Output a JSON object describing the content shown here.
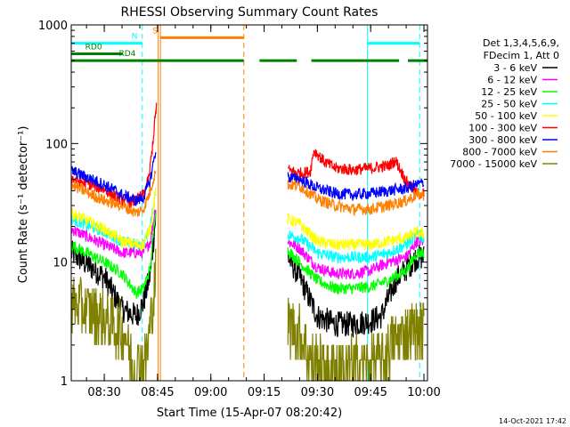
{
  "chart_data": {
    "type": "line",
    "title": "RHESSI Observing Summary Count Rates",
    "xlabel": "Start Time (15-Apr-07 08:20:42)",
    "ylabel": "Count Rate (s⁻¹ detector⁻¹)",
    "yscale": "log",
    "ylim": [
      1,
      1000
    ],
    "xlim_minutes": [
      20.7,
      121
    ],
    "x_ticks": [
      {
        "label": "08:30",
        "min": 30
      },
      {
        "label": "08:45",
        "min": 45
      },
      {
        "label": "09:00",
        "min": 60
      },
      {
        "label": "09:15",
        "min": 75
      },
      {
        "label": "09:30",
        "min": 90
      },
      {
        "label": "09:45",
        "min": 105
      },
      {
        "label": "10:00",
        "min": 120
      }
    ],
    "y_ticks": [
      {
        "label": "1",
        "v": 1
      },
      {
        "label": "10",
        "v": 10
      },
      {
        "label": "100",
        "v": 100
      },
      {
        "label": "1000",
        "v": 1000
      }
    ],
    "legend_header": [
      "Det 1,3,4,5,6,9,",
      "FDecim 1, Att 0"
    ],
    "series": [
      {
        "name": "3 - 6 keV",
        "color": "#000000",
        "a": [
          [
            20.7,
            12
          ],
          [
            30,
            7.5
          ],
          [
            35,
            4
          ],
          [
            39,
            3.5
          ],
          [
            41,
            4.5
          ],
          [
            43,
            8
          ],
          [
            44.5,
            25
          ]
        ],
        "b": [
          [
            81.7,
            11
          ],
          [
            85,
            7.5
          ],
          [
            90,
            3.5
          ],
          [
            95,
            3
          ],
          [
            100,
            3
          ],
          [
            105,
            3.2
          ],
          [
            108,
            3.5
          ],
          [
            112,
            7
          ],
          [
            118,
            11
          ],
          [
            120,
            11
          ]
        ]
      },
      {
        "name": "6 - 12 keV",
        "color": "#ff00ff",
        "a": [
          [
            20.7,
            19
          ],
          [
            30,
            14
          ],
          [
            35,
            12
          ],
          [
            38,
            12
          ],
          [
            41,
            12
          ],
          [
            43,
            15
          ],
          [
            44.5,
            30
          ]
        ],
        "b": [
          [
            81.7,
            15
          ],
          [
            85,
            13
          ],
          [
            90,
            9
          ],
          [
            95,
            8
          ],
          [
            100,
            8
          ],
          [
            105,
            8.5
          ],
          [
            110,
            10
          ],
          [
            115,
            11
          ],
          [
            118,
            15
          ],
          [
            120,
            15
          ]
        ]
      },
      {
        "name": "12 - 25 keV",
        "color": "#00ff00",
        "a": [
          [
            20.7,
            14
          ],
          [
            30,
            10
          ],
          [
            35,
            8
          ],
          [
            39,
            5.5
          ],
          [
            41,
            6
          ],
          [
            43,
            9
          ],
          [
            44.5,
            30
          ]
        ],
        "b": [
          [
            81.7,
            12.5
          ],
          [
            85,
            10
          ],
          [
            90,
            7
          ],
          [
            95,
            6
          ],
          [
            100,
            6
          ],
          [
            105,
            6.2
          ],
          [
            110,
            7
          ],
          [
            115,
            8.5
          ],
          [
            118,
            12
          ],
          [
            120,
            12
          ]
        ]
      },
      {
        "name": "25 - 50 keV",
        "color": "#00ffff",
        "a": [
          [
            20.7,
            23
          ],
          [
            30,
            18
          ],
          [
            35,
            15
          ],
          [
            39,
            14
          ],
          [
            41,
            14
          ],
          [
            43,
            20
          ],
          [
            44.5,
            40
          ]
        ],
        "b": [
          [
            81.7,
            17
          ],
          [
            85,
            16
          ],
          [
            90,
            12
          ],
          [
            95,
            11
          ],
          [
            100,
            11
          ],
          [
            105,
            11
          ],
          [
            110,
            12
          ],
          [
            115,
            14
          ],
          [
            118,
            17
          ],
          [
            120,
            16
          ]
        ]
      },
      {
        "name": "50 - 100 keV",
        "color": "#ffff00",
        "a": [
          [
            20.7,
            26
          ],
          [
            30,
            19
          ],
          [
            35,
            15
          ],
          [
            39,
            14
          ],
          [
            41,
            14
          ],
          [
            43,
            20
          ],
          [
            44.5,
            40
          ]
        ],
        "b": [
          [
            81.7,
            23
          ],
          [
            85,
            21
          ],
          [
            90,
            15
          ],
          [
            95,
            14
          ],
          [
            100,
            14
          ],
          [
            105,
            14
          ],
          [
            110,
            15
          ],
          [
            115,
            16
          ],
          [
            118,
            18
          ],
          [
            120,
            17
          ]
        ]
      },
      {
        "name": "100 - 300 keV",
        "color": "#ff0000",
        "a": [
          [
            20.7,
            51
          ],
          [
            30,
            41
          ],
          [
            35,
            33
          ],
          [
            38,
            32
          ],
          [
            41,
            37
          ],
          [
            42.5,
            50
          ],
          [
            43.5,
            90
          ],
          [
            44.3,
            160
          ],
          [
            44.8,
            230
          ]
        ],
        "b": [
          [
            81.7,
            60
          ],
          [
            85,
            56
          ],
          [
            88,
            58
          ],
          [
            89,
            88
          ],
          [
            92,
            70
          ],
          [
            95,
            62
          ],
          [
            100,
            60
          ],
          [
            105,
            62
          ],
          [
            110,
            65
          ],
          [
            112,
            72
          ],
          [
            115,
            48
          ],
          [
            118,
            38
          ],
          [
            120,
            38
          ]
        ]
      },
      {
        "name": "300 - 800 keV",
        "color": "#0000ff",
        "a": [
          [
            20.7,
            59
          ],
          [
            30,
            45
          ],
          [
            35,
            37
          ],
          [
            39,
            33
          ],
          [
            41,
            35
          ],
          [
            43,
            50
          ],
          [
            44.5,
            90
          ]
        ],
        "b": [
          [
            81.7,
            52
          ],
          [
            85,
            50
          ],
          [
            90,
            42
          ],
          [
            95,
            38
          ],
          [
            100,
            37
          ],
          [
            105,
            38
          ],
          [
            110,
            40
          ],
          [
            115,
            42
          ],
          [
            118,
            45
          ],
          [
            120,
            47
          ]
        ]
      },
      {
        "name": "800 - 7000 keV",
        "color": "#ff8000",
        "a": [
          [
            20.7,
            45
          ],
          [
            30,
            33
          ],
          [
            35,
            30
          ],
          [
            39,
            26
          ],
          [
            41,
            28
          ],
          [
            43,
            40
          ],
          [
            44.5,
            60
          ]
        ],
        "b": [
          [
            81.7,
            45
          ],
          [
            85,
            44
          ],
          [
            90,
            34
          ],
          [
            95,
            30
          ],
          [
            100,
            28
          ],
          [
            105,
            28
          ],
          [
            110,
            30
          ],
          [
            115,
            33
          ],
          [
            118,
            37
          ],
          [
            120,
            37
          ]
        ]
      },
      {
        "name": "7000 - 15000 keV",
        "color": "#808000",
        "a": [
          [
            20.7,
            4.5
          ],
          [
            28,
            3.6
          ],
          [
            32,
            3
          ],
          [
            36,
            2.5
          ],
          [
            38,
            1.3
          ],
          [
            40,
            1.4
          ],
          [
            42,
            1.6
          ],
          [
            43,
            3
          ],
          [
            44.5,
            8
          ]
        ],
        "b": [
          [
            81.7,
            3
          ],
          [
            85,
            2.5
          ],
          [
            88,
            1.5
          ],
          [
            92,
            1.3
          ],
          [
            96,
            1.3
          ],
          [
            100,
            1.3
          ],
          [
            104,
            1.4
          ],
          [
            108,
            1.5
          ],
          [
            112,
            2.2
          ],
          [
            116,
            2.6
          ],
          [
            120,
            2.8
          ]
        ]
      }
    ],
    "annotations": {
      "vlines": [
        {
          "min": 40.7,
          "color": "#00ffff",
          "dash": true
        },
        {
          "min": 45.2,
          "color": "#ff8000",
          "dash": false
        },
        {
          "min": 45.8,
          "color": "#ff8000",
          "dash": false
        },
        {
          "min": 69.3,
          "color": "#ff8000",
          "dash": true
        },
        {
          "min": 104.1,
          "color": "#00ffff",
          "dash": false
        },
        {
          "min": 118.8,
          "color": "#00ffff",
          "dash": true
        }
      ],
      "bars": [
        {
          "label": "N",
          "color": "#00ffff",
          "y": 700,
          "segments": [
            [
              20.7,
              40.7
            ],
            [
              104.1,
              118.8
            ]
          ],
          "label_min": 38.5
        },
        {
          "label": "S",
          "color": "#ff8000",
          "y": 780,
          "segments": [
            [
              45.8,
              69.3
            ]
          ],
          "label_min": 44.3
        },
        {
          "label": "RD0",
          "color": "#008000",
          "y": 570,
          "segments": [
            [
              20.7,
              35.2
            ]
          ],
          "label_min": 27
        },
        {
          "label": "RD4",
          "color": "#008000",
          "y": 500,
          "segments": [
            [
              20.7,
              69.3
            ],
            [
              73.7,
              84.2
            ],
            [
              88.3,
              113
            ],
            [
              115.5,
              121
            ]
          ],
          "label_min": 36.5
        }
      ]
    },
    "footer_date": "14-Oct-2021 17:42"
  }
}
